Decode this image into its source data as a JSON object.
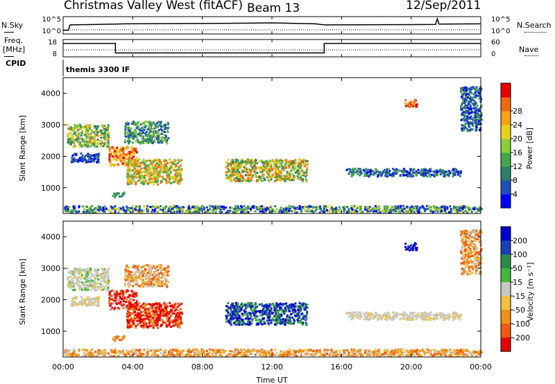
{
  "header": {
    "title": "Christmas Valley West (fitACF)",
    "beam": "Beam 13",
    "date": "12/Sep/2011"
  },
  "left_labels": {
    "nsky": "N.Sky",
    "freq_line1": "Freq.",
    "freq_line2": "[MHz]",
    "cpid": "CPID"
  },
  "right_labels": {
    "nsearch": "N.Search",
    "nave": "Nave"
  },
  "cpid_name": "themis 3300 IF",
  "time_ticks": [
    "00:00",
    "04:00",
    "08:00",
    "12:00",
    "16:00",
    "20:00",
    "00:00"
  ],
  "xlabel": "Time UT",
  "chart_data": [
    {
      "type": "line",
      "panel": "noise",
      "ticks_left": [
        "10^5",
        "10^0"
      ],
      "ticks_right": [
        "10^5",
        "10^0"
      ],
      "x_range_hours": [
        0,
        24
      ],
      "series": [
        {
          "x": [
            0,
            0.3,
            0.4,
            3,
            3.5,
            9,
            12,
            14.5,
            15,
            20,
            21.4,
            21.5,
            21.6,
            24
          ],
          "y": [
            0.2,
            0.2,
            0.55,
            0.6,
            0.62,
            0.65,
            0.68,
            0.62,
            0.55,
            0.57,
            0.58,
            0.95,
            0.6,
            0.62
          ]
        }
      ]
    },
    {
      "type": "line",
      "panel": "frequency",
      "ticks_left": [
        "18",
        "8"
      ],
      "ticks_right": [
        "60",
        "0"
      ],
      "x_range_hours": [
        0,
        24
      ],
      "series": [
        {
          "x": [
            0,
            3,
            3,
            15,
            15,
            24
          ],
          "y": [
            16,
            16,
            10,
            10,
            16,
            16
          ]
        }
      ]
    },
    {
      "type": "heatmap",
      "panel": "power",
      "ylabel": "Slant Range [km]",
      "y_ticks": [
        1000,
        2000,
        3000,
        4000
      ],
      "ylim": [
        180,
        4500
      ],
      "x_range_hours": [
        0,
        24
      ],
      "colorbar": {
        "label": "Power [dB]",
        "ticks": [
          4,
          8,
          12,
          16,
          20,
          24,
          28
        ]
      }
    },
    {
      "type": "heatmap",
      "panel": "velocity",
      "ylabel": "Slant Range [km]",
      "y_ticks": [
        1000,
        2000,
        3000,
        4000
      ],
      "ylim": [
        180,
        4500
      ],
      "x_range_hours": [
        0,
        24
      ],
      "colorbar": {
        "label": "Velocity [m s⁻¹]",
        "ticks": [
          200,
          100,
          50,
          15,
          -15,
          -50,
          -100,
          -200
        ]
      }
    }
  ]
}
